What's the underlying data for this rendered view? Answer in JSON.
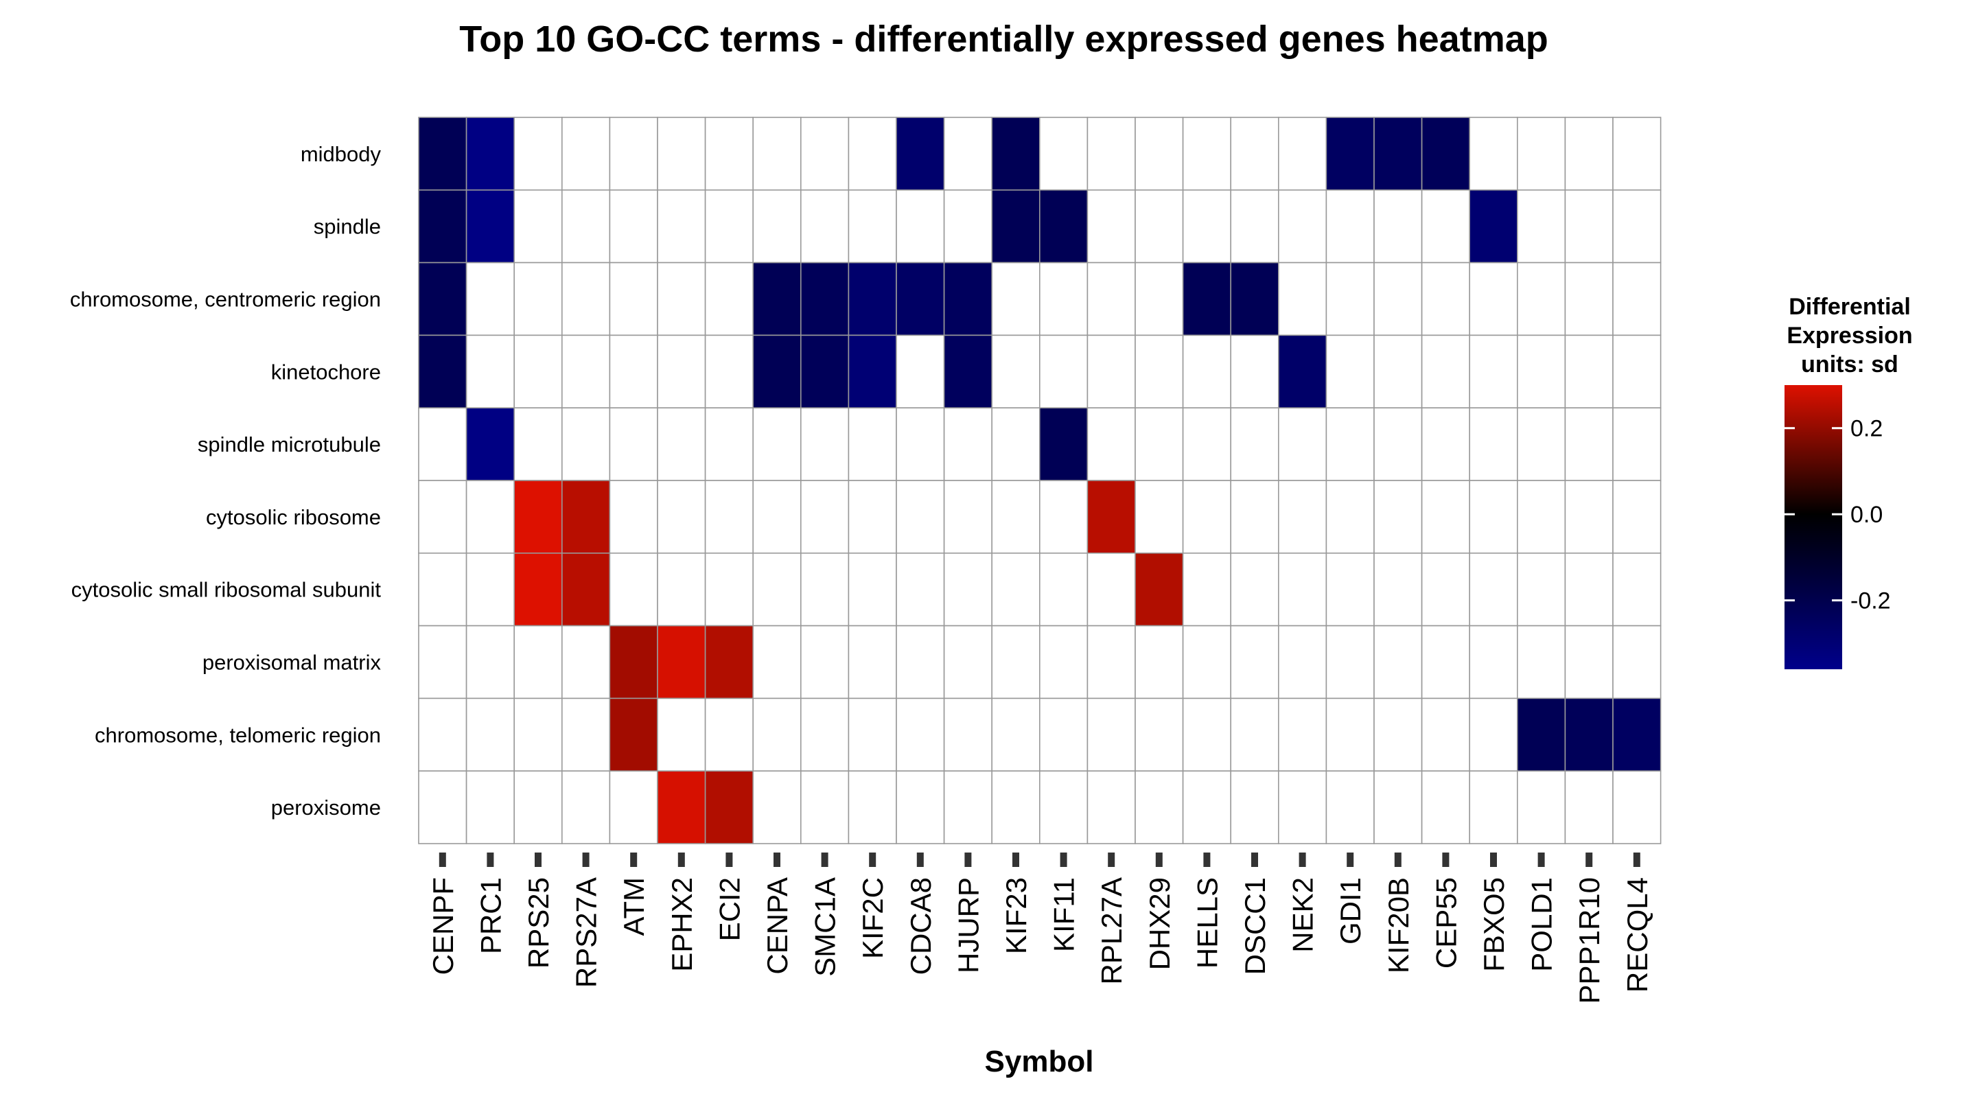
{
  "chart_data": {
    "type": "heatmap",
    "title": "Top 10 GO-CC terms - differentially expressed genes heatmap",
    "xlabel": "Symbol",
    "ylabel": "",
    "x_categories": [
      "CENPF",
      "PRC1",
      "RPS25",
      "RPS27A",
      "ATM",
      "EPHX2",
      "ECI2",
      "CENPA",
      "SMC1A",
      "KIF2C",
      "CDCA8",
      "HJURP",
      "KIF23",
      "KIF11",
      "RPL27A",
      "DHX29",
      "HELLS",
      "DSCC1",
      "NEK2",
      "GDI1",
      "KIF20B",
      "CEP55",
      "FBXO5",
      "POLD1",
      "PPP1R10",
      "RECQL4"
    ],
    "y_categories": [
      "midbody",
      "spindle",
      "chromosome, centromeric region",
      "kinetochore",
      "spindle microtubule",
      "cytosolic ribosome",
      "cytosolic small ribosomal subunit",
      "peroxisomal matrix",
      "chromosome, telomeric region",
      "peroxisome"
    ],
    "values": [
      [
        -0.22,
        -0.34,
        null,
        null,
        null,
        null,
        null,
        null,
        null,
        null,
        -0.28,
        null,
        -0.22,
        null,
        null,
        null,
        null,
        null,
        null,
        -0.25,
        -0.24,
        -0.23,
        null,
        null,
        null,
        null
      ],
      [
        -0.22,
        -0.34,
        null,
        null,
        null,
        null,
        null,
        null,
        null,
        null,
        null,
        null,
        -0.22,
        -0.22,
        null,
        null,
        null,
        null,
        null,
        null,
        null,
        null,
        -0.29,
        null,
        null,
        null
      ],
      [
        -0.22,
        null,
        null,
        null,
        null,
        null,
        null,
        -0.22,
        -0.23,
        -0.28,
        -0.26,
        -0.24,
        null,
        null,
        null,
        null,
        -0.22,
        -0.22,
        null,
        null,
        null,
        null,
        null,
        null,
        null,
        null
      ],
      [
        -0.22,
        null,
        null,
        null,
        null,
        null,
        null,
        -0.22,
        -0.23,
        -0.3,
        null,
        -0.24,
        null,
        null,
        null,
        null,
        null,
        null,
        -0.27,
        null,
        null,
        null,
        null,
        null,
        null,
        null
      ],
      [
        null,
        -0.34,
        null,
        null,
        null,
        null,
        null,
        null,
        null,
        null,
        null,
        null,
        null,
        -0.22,
        null,
        null,
        null,
        null,
        null,
        null,
        null,
        null,
        null,
        null,
        null,
        null
      ],
      [
        null,
        null,
        0.3,
        0.25,
        null,
        null,
        null,
        null,
        null,
        null,
        null,
        null,
        null,
        null,
        0.25,
        null,
        null,
        null,
        null,
        null,
        null,
        null,
        null,
        null,
        null,
        null
      ],
      [
        null,
        null,
        0.3,
        0.25,
        null,
        null,
        null,
        null,
        null,
        null,
        null,
        null,
        null,
        null,
        null,
        0.24,
        null,
        null,
        null,
        null,
        null,
        null,
        null,
        null,
        null,
        null
      ],
      [
        null,
        null,
        null,
        null,
        0.22,
        0.29,
        0.24,
        null,
        null,
        null,
        null,
        null,
        null,
        null,
        null,
        null,
        null,
        null,
        null,
        null,
        null,
        null,
        null,
        null,
        null,
        null
      ],
      [
        null,
        null,
        null,
        null,
        0.22,
        null,
        null,
        null,
        null,
        null,
        null,
        null,
        null,
        null,
        null,
        null,
        null,
        null,
        null,
        null,
        null,
        null,
        null,
        -0.22,
        -0.23,
        -0.25
      ],
      [
        null,
        null,
        null,
        null,
        null,
        0.29,
        0.24,
        null,
        null,
        null,
        null,
        null,
        null,
        null,
        null,
        null,
        null,
        null,
        null,
        null,
        null,
        null,
        null,
        null,
        null,
        null
      ]
    ],
    "legend": {
      "title": [
        "Differential",
        "Expression",
        "units: sd"
      ],
      "range": [
        -0.36,
        0.3
      ],
      "ticks": [
        0.2,
        0.0,
        -0.2
      ],
      "tick_labels": [
        "0.2",
        "0.0",
        "-0.2"
      ],
      "colors": {
        "low": "#00008b",
        "mid": "#000000",
        "high": "#dd1100"
      },
      "placement": "right"
    },
    "colors": {
      "empty_cell": "#ffffff",
      "grid": "#999999"
    },
    "grid": true
  }
}
